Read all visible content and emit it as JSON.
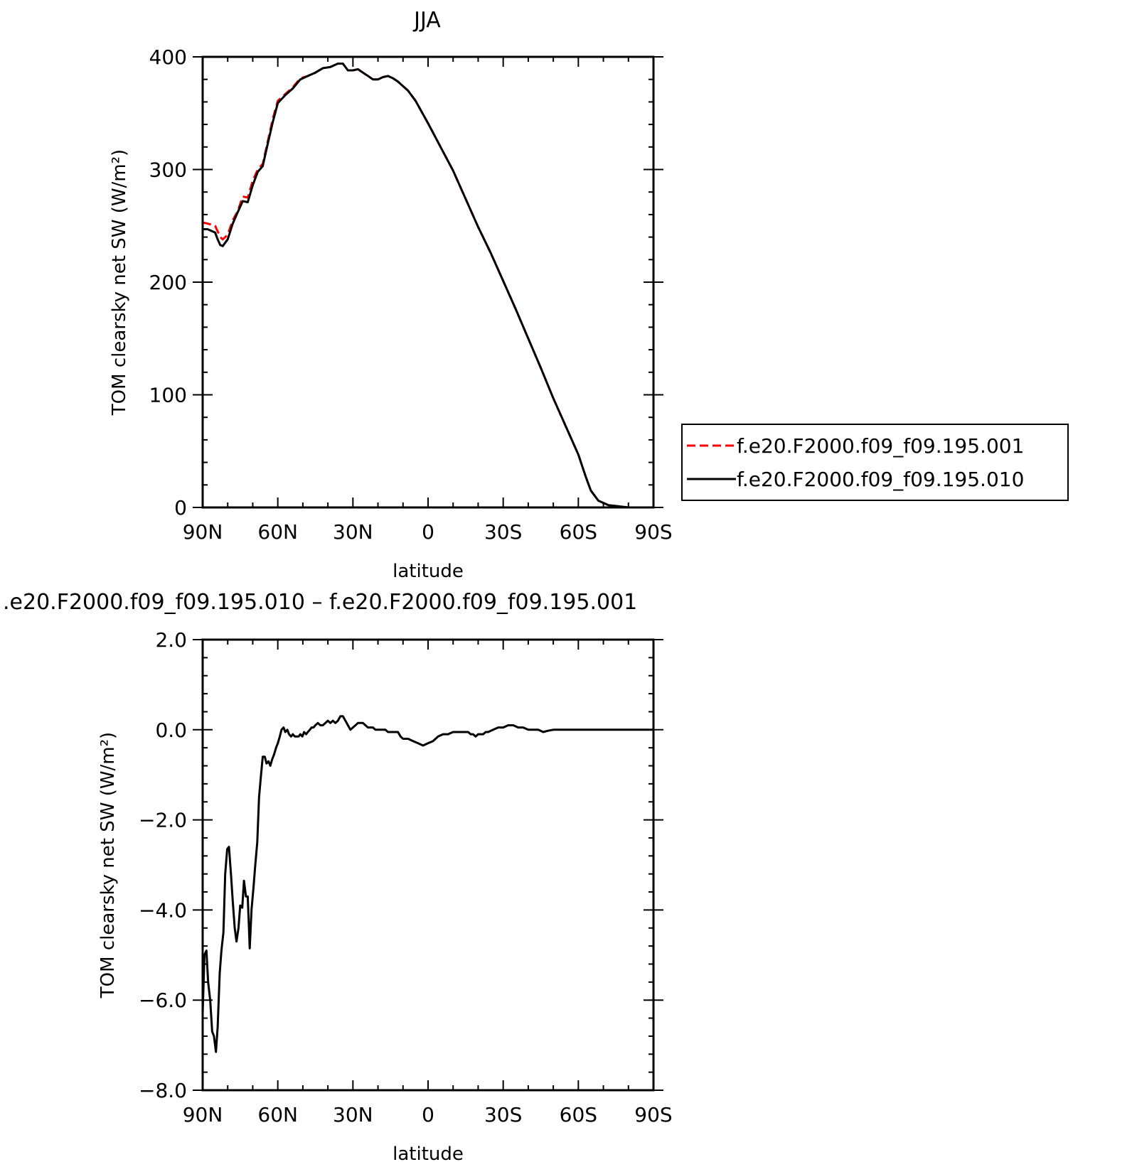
{
  "chart_data": [
    {
      "type": "line",
      "title": "JJA",
      "xlabel": "latitude",
      "ylabel": "TOM clearsky net SW (W/m²)",
      "ylim": [
        0,
        400
      ],
      "xlim": [
        90,
        -90
      ],
      "xticks": [
        90,
        60,
        30,
        0,
        -30,
        -60,
        -90
      ],
      "xtick_labels": [
        "90N",
        "60N",
        "30N",
        "0",
        "30S",
        "60S",
        "90S"
      ],
      "yticks": [
        0,
        100,
        200,
        300,
        400
      ],
      "ytick_labels": [
        "0",
        "100",
        "200",
        "300",
        "400"
      ],
      "grid": false,
      "legend_position": "right",
      "series": [
        {
          "name": "f.e20.F2000.f09_f09.195.001",
          "color": "#ff0000",
          "style": "dashed",
          "x": [
            90,
            88,
            85,
            83,
            82,
            80,
            78,
            76,
            74,
            72,
            70,
            68,
            66,
            64,
            62,
            60,
            57,
            54,
            51,
            48,
            45,
            42,
            39,
            36,
            34,
            32,
            30,
            28,
            26,
            24,
            22,
            20,
            18,
            16,
            14,
            12,
            10,
            8,
            5,
            0,
            -5,
            -10,
            -15,
            -20,
            -25,
            -30,
            -35,
            -40,
            -45,
            -50,
            -55,
            -60,
            -63,
            -65,
            -68,
            -72,
            -76,
            -80,
            -85,
            -90
          ],
          "y": [
            253,
            252,
            250,
            240,
            238,
            242,
            255,
            263,
            276,
            275,
            290,
            300,
            305,
            325,
            345,
            361,
            367,
            373,
            381,
            383,
            386,
            390,
            391,
            394,
            394,
            388,
            388,
            389,
            386,
            383,
            380,
            380,
            382,
            383,
            381,
            378,
            374,
            370,
            361,
            341,
            320,
            299,
            274,
            249,
            226,
            201,
            176,
            150,
            124,
            97,
            72,
            47,
            27,
            15,
            6,
            2,
            1,
            0,
            0,
            0
          ]
        },
        {
          "name": "f.e20.F2000.f09_f09.195.010",
          "color": "#000000",
          "style": "solid",
          "x": [
            90,
            88,
            85,
            84,
            83,
            82,
            80,
            78,
            76,
            74,
            72,
            70,
            68,
            66,
            64,
            62,
            60,
            57,
            54,
            51,
            48,
            45,
            42,
            39,
            36,
            34,
            32,
            30,
            28,
            26,
            24,
            22,
            20,
            18,
            16,
            14,
            12,
            10,
            8,
            5,
            0,
            -5,
            -10,
            -15,
            -20,
            -25,
            -30,
            -35,
            -40,
            -45,
            -50,
            -55,
            -60,
            -63,
            -65,
            -68,
            -72,
            -76,
            -80,
            -85,
            -90
          ],
          "y": [
            247,
            247,
            244,
            238,
            233,
            232,
            238,
            252,
            262,
            272,
            271,
            286,
            298,
            303,
            323,
            342,
            359,
            366,
            372,
            380,
            383,
            386,
            390,
            391,
            394,
            394,
            388,
            388,
            389,
            386,
            383,
            380,
            380,
            382,
            383,
            381,
            378,
            374,
            370,
            361,
            341,
            320,
            299,
            274,
            249,
            226,
            201,
            176,
            150,
            124,
            97,
            72,
            47,
            27,
            15,
            6,
            2,
            1,
            0,
            0,
            0
          ]
        }
      ]
    },
    {
      "type": "line",
      "title": ".e20.F2000.f09_f09.195.010 – f.e20.F2000.f09_f09.195.001",
      "xlabel": "latitude",
      "ylabel": "TOM clearsky net SW (W/m²)",
      "ylim": [
        -8,
        2
      ],
      "xlim": [
        90,
        -90
      ],
      "xticks": [
        90,
        60,
        30,
        0,
        -30,
        -60,
        -90
      ],
      "xtick_labels": [
        "90N",
        "60N",
        "30N",
        "0",
        "30S",
        "60S",
        "90S"
      ],
      "yticks": [
        -8,
        -6,
        -4,
        -2,
        0,
        2
      ],
      "ytick_labels": [
        "−8.0",
        "−6.0",
        "−4.0",
        "−2.0",
        "0.0",
        "2.0"
      ],
      "grid": false,
      "series": [
        {
          "color": "#000000",
          "style": "solid",
          "x": [
            90,
            89.3,
            88.5,
            87.8,
            87,
            86.2,
            85.5,
            84.7,
            84,
            83.2,
            82.5,
            81.7,
            81,
            80.2,
            79.5,
            78.7,
            78,
            77.2,
            76.5,
            75.7,
            75,
            74.2,
            73.5,
            72.7,
            72,
            71.2,
            70.5,
            69.7,
            69,
            68.2,
            67.5,
            66.7,
            66,
            65.2,
            64.5,
            63.7,
            63,
            62.2,
            61.5,
            60.7,
            60,
            59.2,
            58.5,
            57.7,
            57,
            56.2,
            55.5,
            54.7,
            54,
            53.2,
            52.5,
            51.7,
            51,
            50.2,
            49.5,
            48.7,
            48,
            47.2,
            46.5,
            45.7,
            45,
            44,
            43,
            42,
            41,
            40,
            39,
            38,
            37,
            36,
            35,
            34,
            33,
            32,
            31,
            30,
            29,
            28,
            27,
            26,
            25,
            24,
            23,
            22,
            21,
            20,
            19,
            18,
            17,
            16,
            15,
            14,
            13,
            12,
            11,
            10,
            8,
            6,
            4,
            2,
            0,
            -2,
            -4,
            -6,
            -8,
            -10,
            -12,
            -14,
            -16,
            -17,
            -18,
            -19,
            -20,
            -21,
            -22,
            -23,
            -24,
            -26,
            -28,
            -30,
            -32,
            -34,
            -36,
            -38,
            -40,
            -42,
            -44,
            -46,
            -48,
            -50,
            -52,
            -54,
            -56,
            -58,
            -60,
            -62,
            -64,
            -66,
            -70,
            -75,
            -80,
            -85,
            -90
          ],
          "y": [
            -6.3,
            -5,
            -4.9,
            -5.6,
            -6.0,
            -6.7,
            -6.8,
            -7.15,
            -6.6,
            -5.4,
            -4.9,
            -4.5,
            -3.2,
            -2.65,
            -2.6,
            -3.2,
            -3.8,
            -4.4,
            -4.7,
            -4.4,
            -3.9,
            -3.95,
            -3.35,
            -3.7,
            -3.7,
            -4.85,
            -4.0,
            -3.5,
            -3.0,
            -2.5,
            -1.5,
            -1.0,
            -0.6,
            -0.6,
            -0.75,
            -0.7,
            -0.8,
            -0.65,
            -0.55,
            -0.4,
            -0.3,
            -0.15,
            0.0,
            0.05,
            -0.05,
            0.0,
            -0.1,
            -0.15,
            -0.1,
            -0.15,
            -0.15,
            -0.15,
            -0.1,
            -0.15,
            -0.05,
            -0.1,
            -0.05,
            0.0,
            0.05,
            0.05,
            0.1,
            0.15,
            0.1,
            0.1,
            0.15,
            0.2,
            0.15,
            0.2,
            0.15,
            0.2,
            0.3,
            0.3,
            0.2,
            0.1,
            0.0,
            0.05,
            0.1,
            0.15,
            0.15,
            0.15,
            0.1,
            0.05,
            0.05,
            0.05,
            0.0,
            0.0,
            0.0,
            0.0,
            0.0,
            -0.05,
            -0.05,
            -0.05,
            -0.05,
            -0.05,
            -0.15,
            -0.2,
            -0.2,
            -0.25,
            -0.3,
            -0.35,
            -0.3,
            -0.25,
            -0.15,
            -0.1,
            -0.1,
            -0.05,
            -0.05,
            -0.05,
            -0.05,
            -0.1,
            -0.1,
            -0.15,
            -0.1,
            -0.1,
            -0.1,
            -0.05,
            -0.05,
            0.0,
            0.05,
            0.05,
            0.1,
            0.1,
            0.05,
            0.05,
            0.0,
            0.0,
            0.0,
            -0.05,
            -0.02,
            0.0,
            0.0,
            0.0,
            0.0,
            0.0,
            0.0,
            0.0,
            0.0,
            0.0,
            0.0,
            0.0,
            0.0,
            0.0,
            0.0
          ]
        }
      ]
    }
  ]
}
